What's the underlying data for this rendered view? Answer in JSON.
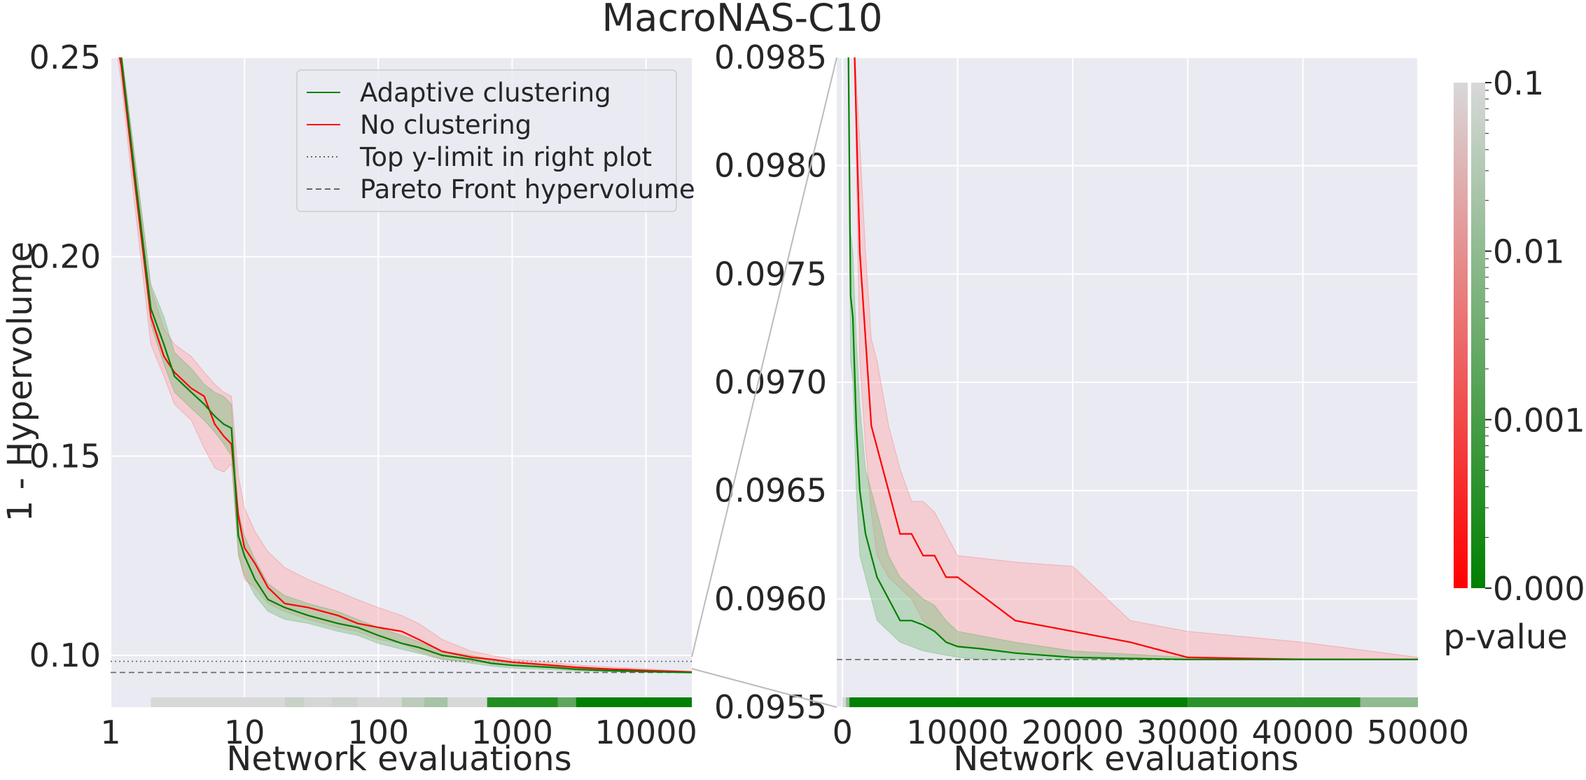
{
  "title": "MacroNAS-C10",
  "colors": {
    "adaptive": "#008000",
    "none": "#ff0000",
    "adaptive_band": "#7fbf7f",
    "none_band": "#ffaaaa",
    "plot_bg": "#eaeaf2",
    "grid": "#ffffff",
    "reference": "#666666"
  },
  "chart_data": [
    {
      "type": "line",
      "xlabel": "Network evaluations",
      "ylabel": "1 - Hypervolume",
      "xscale": "log",
      "xlim": [
        1,
        22000
      ],
      "ylim": [
        0.087,
        0.25
      ],
      "grid": true,
      "xticks": [
        1,
        10,
        100,
        1000,
        10000
      ],
      "xtick_labels": [
        "1",
        "10",
        "100",
        "1000",
        "10000"
      ],
      "yticks": [
        0.1,
        0.15,
        0.2,
        0.25
      ],
      "ytick_labels": [
        "0.10",
        "0.15",
        "0.20",
        "0.25"
      ],
      "legend": {
        "position": "top-right",
        "entries": [
          {
            "label": "Adaptive clustering",
            "style": "solid",
            "color": "#008000"
          },
          {
            "label": "No clustering",
            "style": "solid",
            "color": "#ff0000"
          },
          {
            "label": "Top y-limit in right plot",
            "style": "dotted",
            "color": "#666666"
          },
          {
            "label": "Pareto Front hypervolume",
            "style": "dashed",
            "color": "#666666"
          }
        ]
      },
      "hlines": [
        {
          "y": 0.0985,
          "style": "dotted"
        },
        {
          "y": 0.0957,
          "style": "dashed"
        }
      ],
      "series": [
        {
          "name": "Adaptive clustering",
          "x": [
            1,
            1.2,
            1.5,
            2,
            2.5,
            3,
            4,
            5,
            6,
            7,
            8,
            9,
            10,
            12,
            15,
            20,
            30,
            50,
            70,
            100,
            150,
            200,
            300,
            500,
            700,
            1000,
            2000,
            3000,
            5000,
            10000,
            22000
          ],
          "y": [
            0.262,
            0.25,
            0.222,
            0.187,
            0.178,
            0.17,
            0.166,
            0.163,
            0.16,
            0.158,
            0.157,
            0.13,
            0.125,
            0.119,
            0.114,
            0.112,
            0.11,
            0.108,
            0.107,
            0.105,
            0.103,
            0.102,
            0.1,
            0.099,
            0.098,
            0.0975,
            0.097,
            0.0965,
            0.0962,
            0.0959,
            0.0957
          ],
          "lower": [
            0.262,
            0.248,
            0.218,
            0.183,
            0.173,
            0.166,
            0.162,
            0.159,
            0.156,
            0.153,
            0.15,
            0.125,
            0.12,
            0.115,
            0.111,
            0.109,
            0.108,
            0.106,
            0.105,
            0.103,
            0.1015,
            0.1005,
            0.099,
            0.098,
            0.0973,
            0.0968,
            0.0964,
            0.0961,
            0.0959,
            0.0958,
            0.0957
          ],
          "upper": [
            0.262,
            0.252,
            0.226,
            0.193,
            0.185,
            0.176,
            0.172,
            0.168,
            0.166,
            0.165,
            0.163,
            0.136,
            0.13,
            0.124,
            0.118,
            0.115,
            0.113,
            0.111,
            0.109,
            0.107,
            0.105,
            0.1035,
            0.101,
            0.1,
            0.099,
            0.098,
            0.0975,
            0.097,
            0.0965,
            0.0961,
            0.0957
          ]
        },
        {
          "name": "No clustering",
          "x": [
            1,
            1.2,
            1.5,
            2,
            2.5,
            3,
            4,
            5,
            6,
            7,
            8,
            9,
            10,
            12,
            15,
            20,
            30,
            50,
            70,
            100,
            150,
            200,
            300,
            500,
            700,
            1000,
            2000,
            3000,
            5000,
            10000,
            22000
          ],
          "y": [
            0.262,
            0.248,
            0.22,
            0.185,
            0.175,
            0.171,
            0.167,
            0.165,
            0.158,
            0.155,
            0.153,
            0.135,
            0.127,
            0.123,
            0.117,
            0.113,
            0.112,
            0.11,
            0.108,
            0.107,
            0.106,
            0.104,
            0.101,
            0.0995,
            0.099,
            0.0983,
            0.0975,
            0.097,
            0.0966,
            0.0962,
            0.0958
          ],
          "lower": [
            0.262,
            0.244,
            0.214,
            0.178,
            0.17,
            0.163,
            0.159,
            0.152,
            0.147,
            0.146,
            0.148,
            0.126,
            0.119,
            0.117,
            0.113,
            0.111,
            0.109,
            0.107,
            0.106,
            0.104,
            0.103,
            0.101,
            0.099,
            0.0985,
            0.098,
            0.0975,
            0.0968,
            0.0964,
            0.0961,
            0.0959,
            0.0957
          ],
          "upper": [
            0.262,
            0.252,
            0.226,
            0.192,
            0.182,
            0.178,
            0.175,
            0.171,
            0.168,
            0.166,
            0.165,
            0.145,
            0.137,
            0.131,
            0.126,
            0.122,
            0.119,
            0.116,
            0.114,
            0.112,
            0.11,
            0.108,
            0.104,
            0.101,
            0.1,
            0.099,
            0.0982,
            0.0976,
            0.0971,
            0.0966,
            0.096
          ]
        }
      ],
      "pvalue_strip": [
        {
          "x0": 2,
          "x1": 8,
          "p": 0.1
        },
        {
          "x0": 8,
          "x1": 14,
          "p": 0.12
        },
        {
          "x0": 14,
          "x1": 20,
          "p": 0.1
        },
        {
          "x0": 20,
          "x1": 28,
          "p": 0.06
        },
        {
          "x0": 28,
          "x1": 45,
          "p": 0.09
        },
        {
          "x0": 45,
          "x1": 70,
          "p": 0.07
        },
        {
          "x0": 70,
          "x1": 150,
          "p": 0.1
        },
        {
          "x0": 150,
          "x1": 220,
          "p": 0.04
        },
        {
          "x0": 220,
          "x1": 330,
          "p": 0.02
        },
        {
          "x0": 330,
          "x1": 650,
          "p": 0.1
        },
        {
          "x0": 650,
          "x1": 2200,
          "p": 0.0003
        },
        {
          "x0": 2200,
          "x1": 3000,
          "p": 0.002
        },
        {
          "x0": 3000,
          "x1": 22000,
          "p": 0.0001
        }
      ]
    },
    {
      "type": "line",
      "xlabel": "Network evaluations",
      "ylabel": "",
      "xlim": [
        -500,
        50000
      ],
      "ylim": [
        0.0955,
        0.0985
      ],
      "grid": true,
      "xticks": [
        0,
        10000,
        20000,
        30000,
        40000,
        50000
      ],
      "xtick_labels": [
        "0",
        "10000",
        "20000",
        "30000",
        "40000",
        "50000"
      ],
      "yticks": [
        0.0955,
        0.096,
        0.0965,
        0.097,
        0.0975,
        0.098,
        0.0985
      ],
      "ytick_labels": [
        "0.0955",
        "0.0960",
        "0.0965",
        "0.0970",
        "0.0975",
        "0.0980",
        "0.0985"
      ],
      "hlines": [
        {
          "y": 0.09572,
          "style": "dashed"
        }
      ],
      "series": [
        {
          "name": "Adaptive clustering",
          "x": [
            500,
            700,
            900,
            1200,
            1500,
            2000,
            2500,
            3000,
            4000,
            5000,
            6000,
            7000,
            8000,
            9000,
            10000,
            12000,
            15000,
            20000,
            30000,
            50000
          ],
          "y": [
            0.0986,
            0.0974,
            0.0973,
            0.0968,
            0.0965,
            0.0963,
            0.0962,
            0.0961,
            0.096,
            0.0959,
            0.0959,
            0.09588,
            0.09585,
            0.0958,
            0.09578,
            0.09577,
            0.09575,
            0.09573,
            0.09572,
            0.09572
          ],
          "lower": [
            0.0986,
            0.0971,
            0.097,
            0.0965,
            0.0962,
            0.0961,
            0.096,
            0.0959,
            0.09585,
            0.0958,
            0.09578,
            0.09576,
            0.09575,
            0.09574,
            0.09573,
            0.09572,
            0.09572,
            0.09572,
            0.09572,
            0.09572
          ],
          "upper": [
            0.0986,
            0.0977,
            0.0976,
            0.0972,
            0.0969,
            0.0966,
            0.0965,
            0.0964,
            0.0962,
            0.0961,
            0.09605,
            0.096,
            0.09597,
            0.0959,
            0.09585,
            0.09583,
            0.0958,
            0.09576,
            0.09573,
            0.09572
          ]
        },
        {
          "name": "No clustering",
          "x": [
            1000,
            1500,
            2000,
            2500,
            3000,
            4000,
            5000,
            6000,
            7000,
            8000,
            9000,
            10000,
            15000,
            20000,
            25000,
            30000,
            40000,
            50000
          ],
          "y": [
            0.0986,
            0.0976,
            0.0972,
            0.0968,
            0.0967,
            0.0965,
            0.0963,
            0.0963,
            0.0962,
            0.0962,
            0.0961,
            0.0961,
            0.0959,
            0.09585,
            0.0958,
            0.09573,
            0.09572,
            0.09572
          ],
          "lower": [
            0.0986,
            0.0971,
            0.0967,
            0.0964,
            0.0962,
            0.0961,
            0.09605,
            0.096,
            0.0959,
            0.09585,
            0.0958,
            0.09578,
            0.09575,
            0.09573,
            0.09572,
            0.09572,
            0.09572,
            0.09572
          ],
          "upper": [
            0.0986,
            0.0981,
            0.0976,
            0.0972,
            0.0971,
            0.0968,
            0.0966,
            0.09645,
            0.09645,
            0.0964,
            0.0963,
            0.0962,
            0.09617,
            0.09615,
            0.0959,
            0.09585,
            0.0958,
            0.09573
          ]
        }
      ],
      "pvalue_strip": [
        {
          "x0": 0,
          "x1": 300,
          "p": 0.1
        },
        {
          "x0": 300,
          "x1": 600,
          "p": 0.01
        },
        {
          "x0": 600,
          "x1": 30000,
          "p": 0.0001
        },
        {
          "x0": 30000,
          "x1": 45000,
          "p": 0.0004
        },
        {
          "x0": 45000,
          "x1": 50000,
          "p": 0.01
        }
      ]
    }
  ],
  "colorbar": {
    "label": "p-value",
    "scale": "log",
    "range": [
      0.0001,
      0.1
    ],
    "ticks": [
      0.1,
      0.01,
      0.001,
      0.0001
    ],
    "tick_labels": [
      "0.1",
      "0.01",
      "0.001",
      "0.0001"
    ]
  }
}
